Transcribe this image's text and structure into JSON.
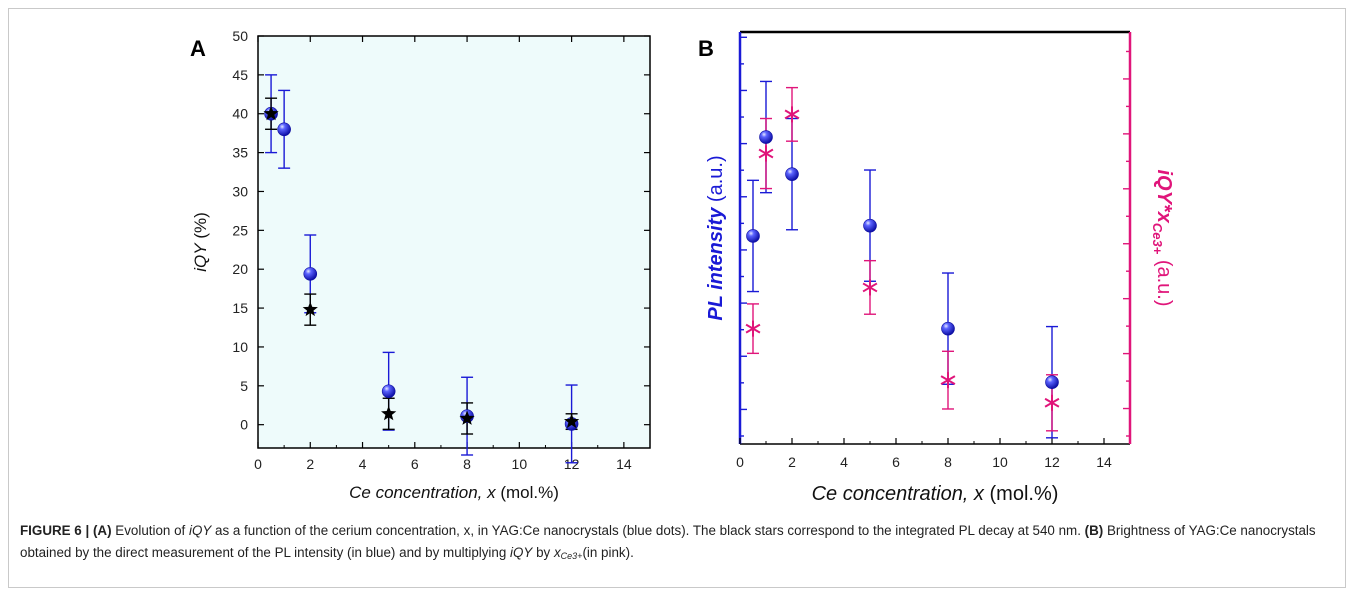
{
  "figure": {
    "caption_label": "FIGURE 6 | ",
    "caption_a_tag": "(A)",
    "caption_t1": " Evolution of ",
    "caption_iqy": "iQY",
    "caption_t2": " as a function of the cerium concentration, x, in YAG:Ce nanocrystals (blue dots). The black stars correspond to the integrated PL decay at 540 nm. ",
    "caption_b_tag": "(B)",
    "caption_t3": " Brightness of YAG:Ce nanocrystals obtained by the direct measurement of the PL intensity (in blue) and by multiplying ",
    "caption_iqy2": "iQY",
    "caption_t4": " by ",
    "caption_x": "x",
    "caption_sub": "Ce3+",
    "caption_t5": "(in pink)."
  },
  "colors": {
    "panel_a_bg": "#eefbfb",
    "blue": "#1a1ad6",
    "pink": "#e0157a",
    "black": "#000000"
  },
  "chart_data": [
    {
      "panel_label": "A",
      "type": "scatter",
      "xlabel_italic": "Ce concentration, x",
      "xlabel_unit": " (mol.%)",
      "ylabel_italic": "iQY",
      "ylabel_unit": " (%)",
      "xlim": [
        0,
        15
      ],
      "ylim": [
        -3,
        50
      ],
      "xticks": [
        0,
        2,
        4,
        6,
        8,
        10,
        12,
        14
      ],
      "yticks": [
        0,
        5,
        10,
        15,
        20,
        25,
        30,
        35,
        40,
        45,
        50
      ],
      "series": [
        {
          "marker": "blue-sphere",
          "x": [
            0.5,
            1,
            2,
            5,
            8,
            12
          ],
          "y": [
            40,
            38,
            19.4,
            4.3,
            1.1,
            0.1
          ],
          "err": [
            5,
            5,
            5,
            5,
            5,
            5
          ]
        },
        {
          "marker": "black-star",
          "x": [
            0.5,
            2,
            5,
            8,
            12
          ],
          "y": [
            40,
            14.8,
            1.4,
            0.8,
            0.4
          ],
          "err": [
            2,
            2,
            2,
            2,
            1
          ]
        }
      ]
    },
    {
      "panel_label": "B",
      "type": "scatter",
      "xlabel_italic": "Ce concentration, x",
      "xlabel_unit": " (mol.%)",
      "ylabel_left": "PL intensity",
      "ylabel_left_unit": " (a.u.)",
      "ylabel_right_main": "iQY*x",
      "ylabel_right_sub": "Ce3+",
      "ylabel_right_unit": " (a.u.)",
      "xlim": [
        0,
        15
      ],
      "xticks": [
        0,
        2,
        4,
        6,
        8,
        10,
        12,
        14
      ],
      "series": [
        {
          "marker": "blue-sphere",
          "axis": "left",
          "x": [
            0.5,
            1,
            2,
            5,
            8,
            12
          ],
          "y": [
            0.505,
            0.745,
            0.655,
            0.53,
            0.28,
            0.15
          ],
          "err": [
            0.135,
            0.135,
            0.135,
            0.135,
            0.135,
            0.135
          ]
        },
        {
          "marker": "pink-asterisk",
          "axis": "right",
          "x": [
            0.5,
            1,
            2,
            5,
            8,
            12
          ],
          "y": [
            0.28,
            0.705,
            0.8,
            0.38,
            0.155,
            0.1
          ],
          "err": [
            0.06,
            0.085,
            0.065,
            0.065,
            0.07,
            0.068
          ]
        }
      ]
    }
  ]
}
